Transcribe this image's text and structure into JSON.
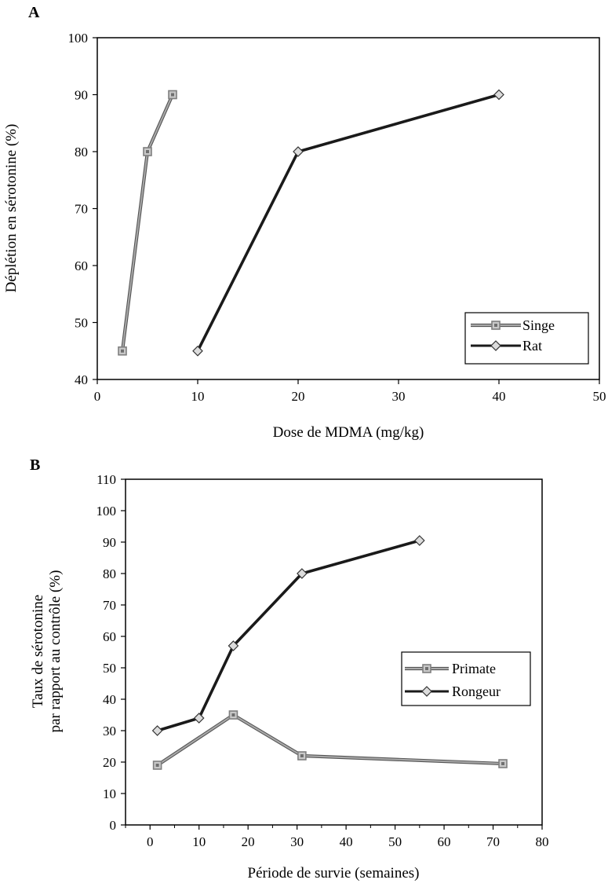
{
  "chart_data": [
    {
      "panel": "A",
      "type": "line",
      "xlabel": "Dose de MDMA (mg/kg)",
      "ylabel": "Déplétion en sérotonine (%)",
      "xlim": [
        0,
        50
      ],
      "ylim": [
        40,
        100
      ],
      "xticks": [
        0,
        10,
        20,
        30,
        40,
        50
      ],
      "yticks": [
        40,
        50,
        60,
        70,
        80,
        90,
        100
      ],
      "legend_position": "bottom-right",
      "series": [
        {
          "name": "Singe",
          "marker": "square",
          "color": "#7f7f7f",
          "line_color": "#8a8a8a",
          "x": [
            2.5,
            5,
            7.5
          ],
          "y": [
            45,
            80,
            90
          ]
        },
        {
          "name": "Rat",
          "marker": "diamond",
          "color": "#1a1a1a",
          "line_color": "#1a1a1a",
          "x": [
            10,
            20,
            40
          ],
          "y": [
            45,
            80,
            90
          ]
        }
      ]
    },
    {
      "panel": "B",
      "type": "line",
      "xlabel": "Période de survie (semaines)",
      "ylabel_line1": "Taux de sérotonine",
      "ylabel_line2": "par rapport au contrôle (%)",
      "xlim": [
        -5,
        80
      ],
      "ylim": [
        0,
        110
      ],
      "xticks": [
        0,
        10,
        20,
        30,
        40,
        50,
        60,
        70,
        80
      ],
      "yticks": [
        0,
        10,
        20,
        30,
        40,
        50,
        60,
        70,
        80,
        90,
        100,
        110
      ],
      "legend_position": "right",
      "series": [
        {
          "name": "Primate",
          "marker": "square",
          "color": "#7f7f7f",
          "line_color": "#8a8a8a",
          "x": [
            1.5,
            17,
            31,
            72
          ],
          "y": [
            19,
            35,
            22,
            19.5
          ]
        },
        {
          "name": "Rongeur",
          "marker": "diamond",
          "color": "#1a1a1a",
          "line_color": "#1a1a1a",
          "x": [
            1.5,
            10,
            17,
            31,
            55
          ],
          "y": [
            30,
            34,
            57,
            80,
            90.5
          ]
        }
      ]
    }
  ]
}
